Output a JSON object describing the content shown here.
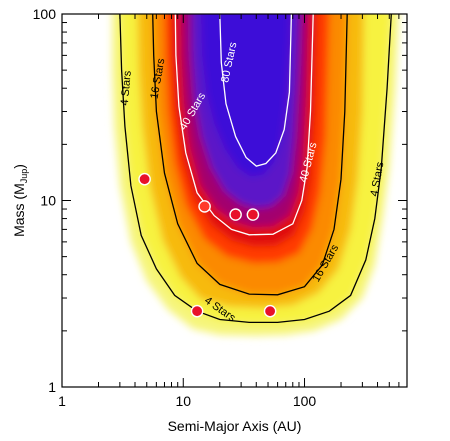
{
  "chart_data": {
    "type": "heatmap",
    "title": "",
    "xlabel": "Semi-Major Axis (AU)",
    "ylabel_main": "Mass (M",
    "ylabel_sub": "Jup",
    "ylabel_end": ")",
    "x_scale": "log",
    "y_scale": "log",
    "xlim": [
      1,
      700
    ],
    "ylim": [
      1,
      100
    ],
    "x_ticks": [
      {
        "value": 1,
        "label": "1"
      },
      {
        "value": 10,
        "label": "10"
      },
      {
        "value": 100,
        "label": "100"
      }
    ],
    "y_ticks": [
      {
        "value": 1,
        "label": "1"
      },
      {
        "value": 10,
        "label": "10"
      },
      {
        "value": 100,
        "label": "100"
      }
    ],
    "colormap": [
      "#ffffff",
      "#f7f44a",
      "#f7b800",
      "#ff8800",
      "#ff2200",
      "#dd0000",
      "#a0006a",
      "#5a12c8",
      "#3c10d8"
    ],
    "contours": [
      {
        "name": "4 Stars",
        "label": "4 Stars",
        "color": "#000000",
        "points": [
          [
            3.0,
            100
          ],
          [
            3.1,
            50
          ],
          [
            3.3,
            25
          ],
          [
            3.7,
            12
          ],
          [
            4.5,
            6.5
          ],
          [
            6.0,
            4.3
          ],
          [
            8.5,
            3.1
          ],
          [
            13,
            2.55
          ],
          [
            20,
            2.3
          ],
          [
            35,
            2.22
          ],
          [
            60,
            2.22
          ],
          [
            100,
            2.3
          ],
          [
            160,
            2.55
          ],
          [
            240,
            3.1
          ],
          [
            320,
            4.8
          ],
          [
            380,
            8
          ],
          [
            430,
            15
          ],
          [
            480,
            40
          ],
          [
            520,
            100
          ]
        ],
        "labels": [
          [
            3.4,
            40,
            -85
          ],
          [
            20,
            2.6,
            35
          ],
          [
            400,
            13,
            -80
          ]
        ]
      },
      {
        "name": "16 Stars",
        "label": "16 Stars",
        "color": "#000000",
        "points": [
          [
            5.6,
            100
          ],
          [
            5.7,
            60
          ],
          [
            6.0,
            30
          ],
          [
            7.0,
            14
          ],
          [
            9.0,
            7.5
          ],
          [
            13,
            4.6
          ],
          [
            20,
            3.55
          ],
          [
            35,
            3.15
          ],
          [
            60,
            3.12
          ],
          [
            100,
            3.45
          ],
          [
            140,
            4.5
          ],
          [
            175,
            7
          ],
          [
            200,
            13
          ],
          [
            215,
            30
          ],
          [
            225,
            100
          ]
        ],
        "labels": [
          [
            6.2,
            45,
            -80
          ],
          [
            150,
            4.6,
            -60
          ]
        ]
      },
      {
        "name": "40 Stars",
        "label": "40 Stars",
        "color": "#ffffff",
        "points": [
          [
            8.6,
            100
          ],
          [
            8.7,
            60
          ],
          [
            9.2,
            32
          ],
          [
            10.5,
            18
          ],
          [
            13,
            11
          ],
          [
            18,
            8.3
          ],
          [
            25,
            7.0
          ],
          [
            35,
            6.55
          ],
          [
            55,
            6.6
          ],
          [
            80,
            7.5
          ],
          [
            95,
            10
          ],
          [
            105,
            15
          ],
          [
            112,
            30
          ],
          [
            118,
            100
          ]
        ],
        "labels": [
          [
            12,
            30,
            -60
          ],
          [
            108,
            16,
            -75
          ]
        ]
      },
      {
        "name": "80 Stars",
        "label": "80 Stars",
        "color": "#ffffff",
        "points": [
          [
            20,
            100
          ],
          [
            20.6,
            55
          ],
          [
            22.5,
            33
          ],
          [
            27,
            22
          ],
          [
            33,
            17
          ],
          [
            40,
            15.3
          ],
          [
            48,
            15.8
          ],
          [
            58,
            18
          ],
          [
            68,
            24
          ],
          [
            75,
            38
          ],
          [
            78,
            100
          ]
        ],
        "labels": [
          [
            24,
            55,
            -78
          ]
        ]
      }
    ],
    "bands": [
      {
        "color": "#f6f57c",
        "points": [
          [
            2.6,
            100
          ],
          [
            2.6,
            50
          ],
          [
            2.7,
            25
          ],
          [
            3.0,
            12
          ],
          [
            3.7,
            6
          ],
          [
            5.0,
            3.7
          ],
          [
            7.5,
            2.6
          ],
          [
            12,
            2.05
          ],
          [
            20,
            1.9
          ],
          [
            40,
            1.88
          ],
          [
            70,
            1.9
          ],
          [
            120,
            2.0
          ],
          [
            200,
            2.3
          ],
          [
            300,
            3.0
          ],
          [
            380,
            4.5
          ],
          [
            440,
            8
          ],
          [
            500,
            15
          ],
          [
            560,
            40
          ],
          [
            600,
            100
          ]
        ]
      },
      {
        "color": "#f7f241",
        "points": [
          [
            3.05,
            100
          ],
          [
            3.1,
            50
          ],
          [
            3.3,
            25
          ],
          [
            3.7,
            12
          ],
          [
            4.6,
            6.4
          ],
          [
            6.1,
            4.25
          ],
          [
            8.6,
            3.05
          ],
          [
            13,
            2.5
          ],
          [
            20,
            2.26
          ],
          [
            35,
            2.18
          ],
          [
            60,
            2.18
          ],
          [
            100,
            2.25
          ],
          [
            165,
            2.5
          ],
          [
            245,
            3.05
          ],
          [
            325,
            4.7
          ],
          [
            385,
            8
          ],
          [
            435,
            15
          ],
          [
            480,
            40
          ],
          [
            515,
            100
          ]
        ]
      },
      {
        "color": "#f7ba0f",
        "points": [
          [
            4.2,
            100
          ],
          [
            4.3,
            50
          ],
          [
            4.6,
            25
          ],
          [
            5.3,
            12
          ],
          [
            6.8,
            6.1
          ],
          [
            9.5,
            3.9
          ],
          [
            14,
            2.95
          ],
          [
            24,
            2.7
          ],
          [
            45,
            2.65
          ],
          [
            80,
            2.75
          ],
          [
            130,
            3.2
          ],
          [
            190,
            4.3
          ],
          [
            240,
            7
          ],
          [
            275,
            13
          ],
          [
            300,
            30
          ],
          [
            310,
            100
          ]
        ]
      },
      {
        "color": "#fb8a00",
        "points": [
          [
            5.6,
            100
          ],
          [
            5.7,
            60
          ],
          [
            6.0,
            30
          ],
          [
            7.0,
            14
          ],
          [
            9.0,
            7.5
          ],
          [
            13,
            4.6
          ],
          [
            20,
            3.55
          ],
          [
            35,
            3.15
          ],
          [
            60,
            3.12
          ],
          [
            100,
            3.45
          ],
          [
            140,
            4.5
          ],
          [
            175,
            7
          ],
          [
            200,
            13
          ],
          [
            215,
            30
          ],
          [
            225,
            100
          ]
        ]
      },
      {
        "color": "#ff3a00",
        "points": [
          [
            7.0,
            100
          ],
          [
            7.1,
            60
          ],
          [
            7.5,
            30
          ],
          [
            8.5,
            16
          ],
          [
            10.5,
            9.5
          ],
          [
            15,
            6.2
          ],
          [
            23,
            5.0
          ],
          [
            38,
            4.6
          ],
          [
            60,
            4.65
          ],
          [
            90,
            5.2
          ],
          [
            115,
            7
          ],
          [
            135,
            11
          ],
          [
            150,
            22
          ],
          [
            160,
            100
          ]
        ]
      },
      {
        "color": "#e00a0a",
        "points": [
          [
            8.0,
            100
          ],
          [
            8.1,
            60
          ],
          [
            8.6,
            32
          ],
          [
            9.8,
            17
          ],
          [
            12.2,
            10.5
          ],
          [
            17,
            7.4
          ],
          [
            25,
            6.1
          ],
          [
            38,
            5.65
          ],
          [
            58,
            5.7
          ],
          [
            82,
            6.5
          ],
          [
            100,
            8.7
          ],
          [
            112,
            13
          ],
          [
            120,
            28
          ],
          [
            126,
            100
          ]
        ]
      },
      {
        "color": "#a3006e",
        "points": [
          [
            9.5,
            100
          ],
          [
            9.6,
            60
          ],
          [
            10.1,
            33
          ],
          [
            11.5,
            19
          ],
          [
            14,
            12
          ],
          [
            19,
            9
          ],
          [
            27,
            7.7
          ],
          [
            38,
            7.2
          ],
          [
            55,
            7.3
          ],
          [
            75,
            8.3
          ],
          [
            88,
            11
          ],
          [
            97,
            17
          ],
          [
            103,
            35
          ],
          [
            108,
            100
          ]
        ]
      },
      {
        "color": "#5b14c8",
        "points": [
          [
            11.5,
            100
          ],
          [
            11.6,
            60
          ],
          [
            12.3,
            35
          ],
          [
            14,
            22
          ],
          [
            17,
            15
          ],
          [
            22,
            11.2
          ],
          [
            30,
            9.6
          ],
          [
            40,
            9.1
          ],
          [
            53,
            9.3
          ],
          [
            67,
            10.6
          ],
          [
            77,
            14
          ],
          [
            83,
            22
          ],
          [
            88,
            45
          ],
          [
            92,
            100
          ]
        ]
      },
      {
        "color": "#3c10d8",
        "points": [
          [
            14,
            100
          ],
          [
            14.3,
            60
          ],
          [
            15.5,
            38
          ],
          [
            18,
            26
          ],
          [
            22,
            19
          ],
          [
            28,
            15
          ],
          [
            36,
            13.4
          ],
          [
            46,
            13.8
          ],
          [
            56,
            16
          ],
          [
            64,
            21
          ],
          [
            70,
            32
          ],
          [
            74,
            60
          ],
          [
            76,
            100
          ]
        ]
      }
    ],
    "points_series": {
      "name": "",
      "fill": "#e8112a",
      "points": [
        {
          "x": 4.8,
          "y": 13.0,
          "fill": "#e8112a"
        },
        {
          "x": 13.0,
          "y": 2.55,
          "fill": "#e8112a"
        },
        {
          "x": 15.0,
          "y": 9.3,
          "fill": "#ff3b2a"
        },
        {
          "x": 27.0,
          "y": 8.4,
          "fill": "#e8112a"
        },
        {
          "x": 37.5,
          "y": 8.4,
          "fill": "#e8112a"
        },
        {
          "x": 52.0,
          "y": 2.55,
          "fill": "#e8112a"
        }
      ]
    }
  }
}
